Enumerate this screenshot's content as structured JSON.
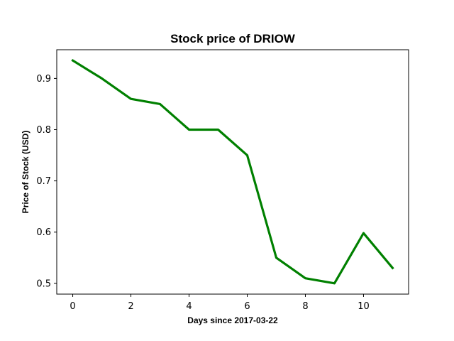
{
  "chart_data": {
    "type": "line",
    "title": "Stock price of DRIOW",
    "xlabel": "Days since 2017-03-22",
    "ylabel": "Price of Stock (USD)",
    "x": [
      0,
      1,
      2,
      3,
      4,
      5,
      6,
      7,
      8,
      9,
      10,
      11
    ],
    "series": [
      {
        "values": [
          0.935,
          0.9,
          0.86,
          0.85,
          0.8,
          0.8,
          0.75,
          0.55,
          0.51,
          0.5,
          0.598,
          0.53
        ]
      }
    ],
    "xlim": [
      -0.55,
      11.55
    ],
    "ylim": [
      0.479,
      0.956
    ],
    "xticks": [
      0,
      2,
      4,
      6,
      8,
      10
    ],
    "yticks": [
      0.5,
      0.6,
      0.7,
      0.8,
      0.9
    ],
    "line_color": "#008000",
    "grid": false,
    "legend": "none"
  }
}
